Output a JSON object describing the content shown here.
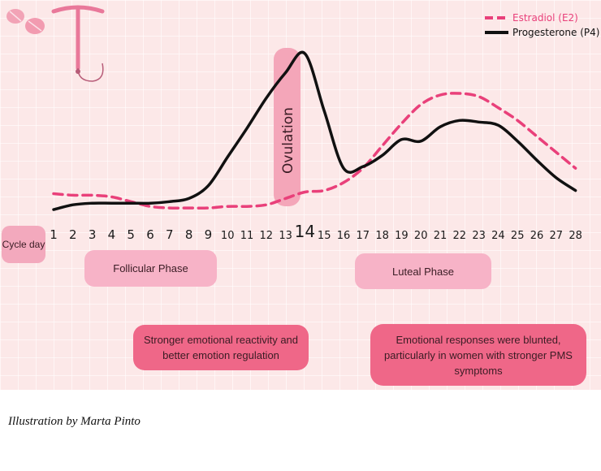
{
  "chart_data": {
    "type": "line",
    "title": "",
    "xlabel": "Cycle day",
    "ylabel": "",
    "xlim": [
      1,
      28
    ],
    "x": [
      1,
      2,
      3,
      4,
      5,
      6,
      7,
      8,
      9,
      10,
      11,
      12,
      13,
      14,
      15,
      16,
      17,
      18,
      19,
      20,
      21,
      22,
      23,
      24,
      25,
      26,
      27,
      28
    ],
    "x_tick_labels": [
      "1",
      "2",
      "3",
      "4",
      "5",
      "6",
      "7",
      "8",
      "9",
      "10",
      "11",
      "12",
      "13",
      "14",
      "15",
      "16",
      "17",
      "18",
      "19",
      "20",
      "21",
      "22",
      "23",
      "24",
      "25",
      "26",
      "27",
      "28"
    ],
    "ylim": [
      0,
      100
    ],
    "grid": true,
    "legend_position": "top-right",
    "series": [
      {
        "name": "Estradiol (E2)",
        "style": "dashed",
        "color": "#e9407a",
        "values": [
          12,
          11,
          11,
          10,
          7,
          4,
          3,
          3,
          3,
          4,
          4,
          5,
          9,
          13,
          14,
          19,
          28,
          42,
          56,
          68,
          74,
          75,
          73,
          66,
          58,
          48,
          38,
          28
        ]
      },
      {
        "name": "Progesterone (P4)",
        "style": "solid",
        "color": "#111111",
        "values": [
          2,
          5,
          6,
          6,
          6,
          6,
          7,
          9,
          17,
          35,
          53,
          72,
          88,
          100,
          64,
          28,
          29,
          36,
          46,
          45,
          54,
          58,
          57,
          55,
          45,
          33,
          22,
          14
        ]
      }
    ],
    "annotations": {
      "ovulation": "Ovulation",
      "ovulation_day": 14
    }
  },
  "labels": {
    "cycle_day": "Cycle day",
    "follicular_phase": "Follicular Phase",
    "luteal_phase": "Luteal Phase",
    "follicular_note": "Stronger emotional reactivity and better emotion regulation",
    "luteal_note": "Emotional responses were blunted, particularly in women with stronger PMS symptoms"
  },
  "credit": "Illustration by Marta Pinto",
  "icons": [
    "pill-icon",
    "iud-icon"
  ],
  "colors": {
    "background": "#fce8e8",
    "estradiol": "#e9407a",
    "progesterone": "#111111",
    "phase_box": "#f7b3c7",
    "note_box": "#ef6788",
    "ovulation_box": "#f4a6b9"
  }
}
